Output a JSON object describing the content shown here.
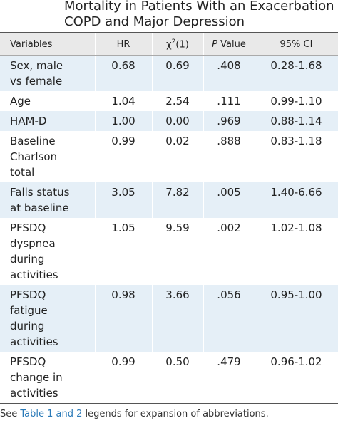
{
  "header": {
    "title": [
      "Mortality in Patients With an Exacerbation of",
      "COPD and Major Depression"
    ]
  },
  "table": {
    "columns": [
      {
        "text": "Variables"
      },
      {
        "text": "HR"
      },
      {
        "base": "χ",
        "sup": "2",
        "rest": "(1)"
      },
      {
        "italic": "P",
        "rest": " Value"
      },
      {
        "text": "95% CI"
      }
    ],
    "rows": [
      [
        [
          "Sex, male",
          "vs female"
        ],
        "0.68",
        "0.69",
        ".408",
        "0.28-1.68"
      ],
      [
        [
          "Age"
        ],
        "1.04",
        "2.54",
        ".111",
        "0.99-1.10"
      ],
      [
        [
          "HAM-D"
        ],
        "1.00",
        "0.00",
        ".969",
        "0.88-1.14"
      ],
      [
        [
          "Baseline",
          "Charlson",
          "total"
        ],
        "0.99",
        "0.02",
        ".888",
        "0.83-1.18"
      ],
      [
        [
          "Falls status",
          "at baseline"
        ],
        "3.05",
        "7.82",
        ".005",
        "1.40-6.66"
      ],
      [
        [
          "PFSDQ",
          "dyspnea",
          "during",
          "activities"
        ],
        "1.05",
        "9.59",
        ".002",
        "1.02-1.08"
      ],
      [
        [
          "PFSDQ",
          "fatigue",
          "during",
          "activities"
        ],
        "0.98",
        "3.66",
        ".056",
        "0.95-1.00"
      ],
      [
        [
          "PFSDQ",
          "change in",
          "activities"
        ],
        "0.99",
        "0.50",
        ".479",
        "0.96-1.02"
      ]
    ]
  },
  "footnote": {
    "before": "See ",
    "link": "Table 1 and 2",
    "after": " legends for expansion of abbreviations."
  }
}
